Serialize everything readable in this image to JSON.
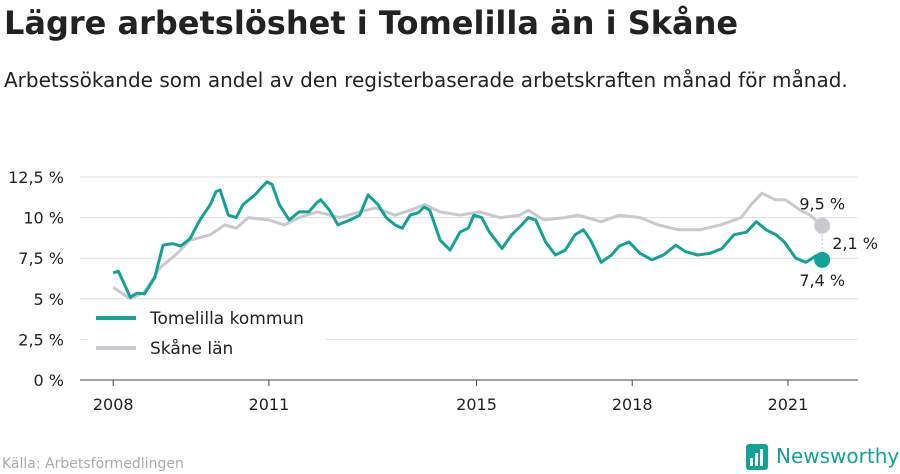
{
  "chart_data": {
    "type": "line",
    "title": "Lägre arbetslöshet i Tomelilla än i Skåne",
    "subtitle": "Arbetssökande som andel av den registerbaserade arbetskraften månad för månad.",
    "source": "Källa: Arbetsförmedlingen",
    "brand": "Newsworthy",
    "series": [
      {
        "name": "Tomelilla kommun",
        "color": "#12a396",
        "x": [
          2008.0,
          2008.1,
          2008.33,
          2008.46,
          2008.6,
          2008.8,
          2008.96,
          2009.14,
          2009.3,
          2009.48,
          2009.67,
          2009.87,
          2009.98,
          2010.06,
          2010.22,
          2010.37,
          2010.5,
          2010.73,
          2010.96,
          2011.06,
          2011.2,
          2011.39,
          2011.58,
          2011.77,
          2011.93,
          2012.0,
          2012.17,
          2012.33,
          2012.56,
          2012.75,
          2012.91,
          2013.1,
          2013.26,
          2013.43,
          2013.57,
          2013.72,
          2013.88,
          2013.99,
          2014.1,
          2014.3,
          2014.49,
          2014.68,
          2014.84,
          2014.95,
          2015.1,
          2015.25,
          2015.49,
          2015.68,
          2015.87,
          2016.0,
          2016.14,
          2016.33,
          2016.52,
          2016.71,
          2016.9,
          2017.06,
          2017.2,
          2017.4,
          2017.6,
          2017.75,
          2017.94,
          2018.15,
          2018.38,
          2018.6,
          2018.84,
          2019.03,
          2019.26,
          2019.5,
          2019.73,
          2019.96,
          2020.2,
          2020.39,
          2020.58,
          2020.77,
          2020.93,
          2021.15,
          2021.35,
          2021.54,
          2021.66
        ],
        "values": [
          6.6,
          6.7,
          5.1,
          5.35,
          5.3,
          6.3,
          8.3,
          8.4,
          8.25,
          8.7,
          9.85,
          10.8,
          11.6,
          11.7,
          10.15,
          10.0,
          10.8,
          11.4,
          12.2,
          12.05,
          10.8,
          9.85,
          10.35,
          10.35,
          10.95,
          11.1,
          10.45,
          9.55,
          9.85,
          10.15,
          11.4,
          10.8,
          10.0,
          9.55,
          9.35,
          10.15,
          10.3,
          10.65,
          10.45,
          8.6,
          8.0,
          9.1,
          9.35,
          10.15,
          10.0,
          9.1,
          8.1,
          8.95,
          9.55,
          10.0,
          9.85,
          8.5,
          7.7,
          8.0,
          8.95,
          9.25,
          8.6,
          7.25,
          7.7,
          8.25,
          8.5,
          7.8,
          7.4,
          7.7,
          8.3,
          7.9,
          7.7,
          7.8,
          8.1,
          8.95,
          9.1,
          9.75,
          9.25,
          8.95,
          8.5,
          7.5,
          7.25,
          7.65,
          7.4
        ],
        "end_label": "7,4 %"
      },
      {
        "name": "Skåne län",
        "color": "#c8c8cf",
        "x": [
          2008.0,
          2008.33,
          2008.6,
          2008.9,
          2009.2,
          2009.48,
          2009.87,
          2010.15,
          2010.37,
          2010.6,
          2011.0,
          2011.3,
          2011.58,
          2011.93,
          2012.37,
          2012.75,
          2013.05,
          2013.43,
          2013.72,
          2014.0,
          2014.3,
          2014.68,
          2015.06,
          2015.45,
          2015.83,
          2016.0,
          2016.3,
          2016.7,
          2016.96,
          2017.4,
          2017.75,
          2018.15,
          2018.5,
          2018.9,
          2019.3,
          2019.7,
          2020.1,
          2020.29,
          2020.5,
          2020.75,
          2020.95,
          2021.24,
          2021.43,
          2021.66
        ],
        "values": [
          5.7,
          5.0,
          5.4,
          6.9,
          7.7,
          8.6,
          8.95,
          9.55,
          9.35,
          10.0,
          9.85,
          9.55,
          10.0,
          10.35,
          10.0,
          10.35,
          10.6,
          10.15,
          10.45,
          10.8,
          10.35,
          10.15,
          10.35,
          10.0,
          10.15,
          10.45,
          9.85,
          10.0,
          10.15,
          9.75,
          10.15,
          10.0,
          9.55,
          9.25,
          9.25,
          9.55,
          10.0,
          10.8,
          11.5,
          11.1,
          11.1,
          10.45,
          10.15,
          9.5
        ],
        "end_label": "9,5 %"
      }
    ],
    "difference_label": "2,1 %",
    "xlim": [
      2007.36,
      2022.35
    ],
    "xticks": [
      2008,
      2011,
      2015,
      2018,
      2021
    ],
    "ylim": [
      0,
      12.5
    ],
    "yticks": [
      {
        "value": 0,
        "label": "0 %"
      },
      {
        "value": 2.5,
        "label": "2,5 %"
      },
      {
        "value": 5,
        "label": "5 %"
      },
      {
        "value": 7.5,
        "label": "7,5 %"
      },
      {
        "value": 10,
        "label": "10 %"
      },
      {
        "value": 12.5,
        "label": "12,5 %"
      }
    ],
    "grid": true,
    "legend": "lower-left"
  }
}
